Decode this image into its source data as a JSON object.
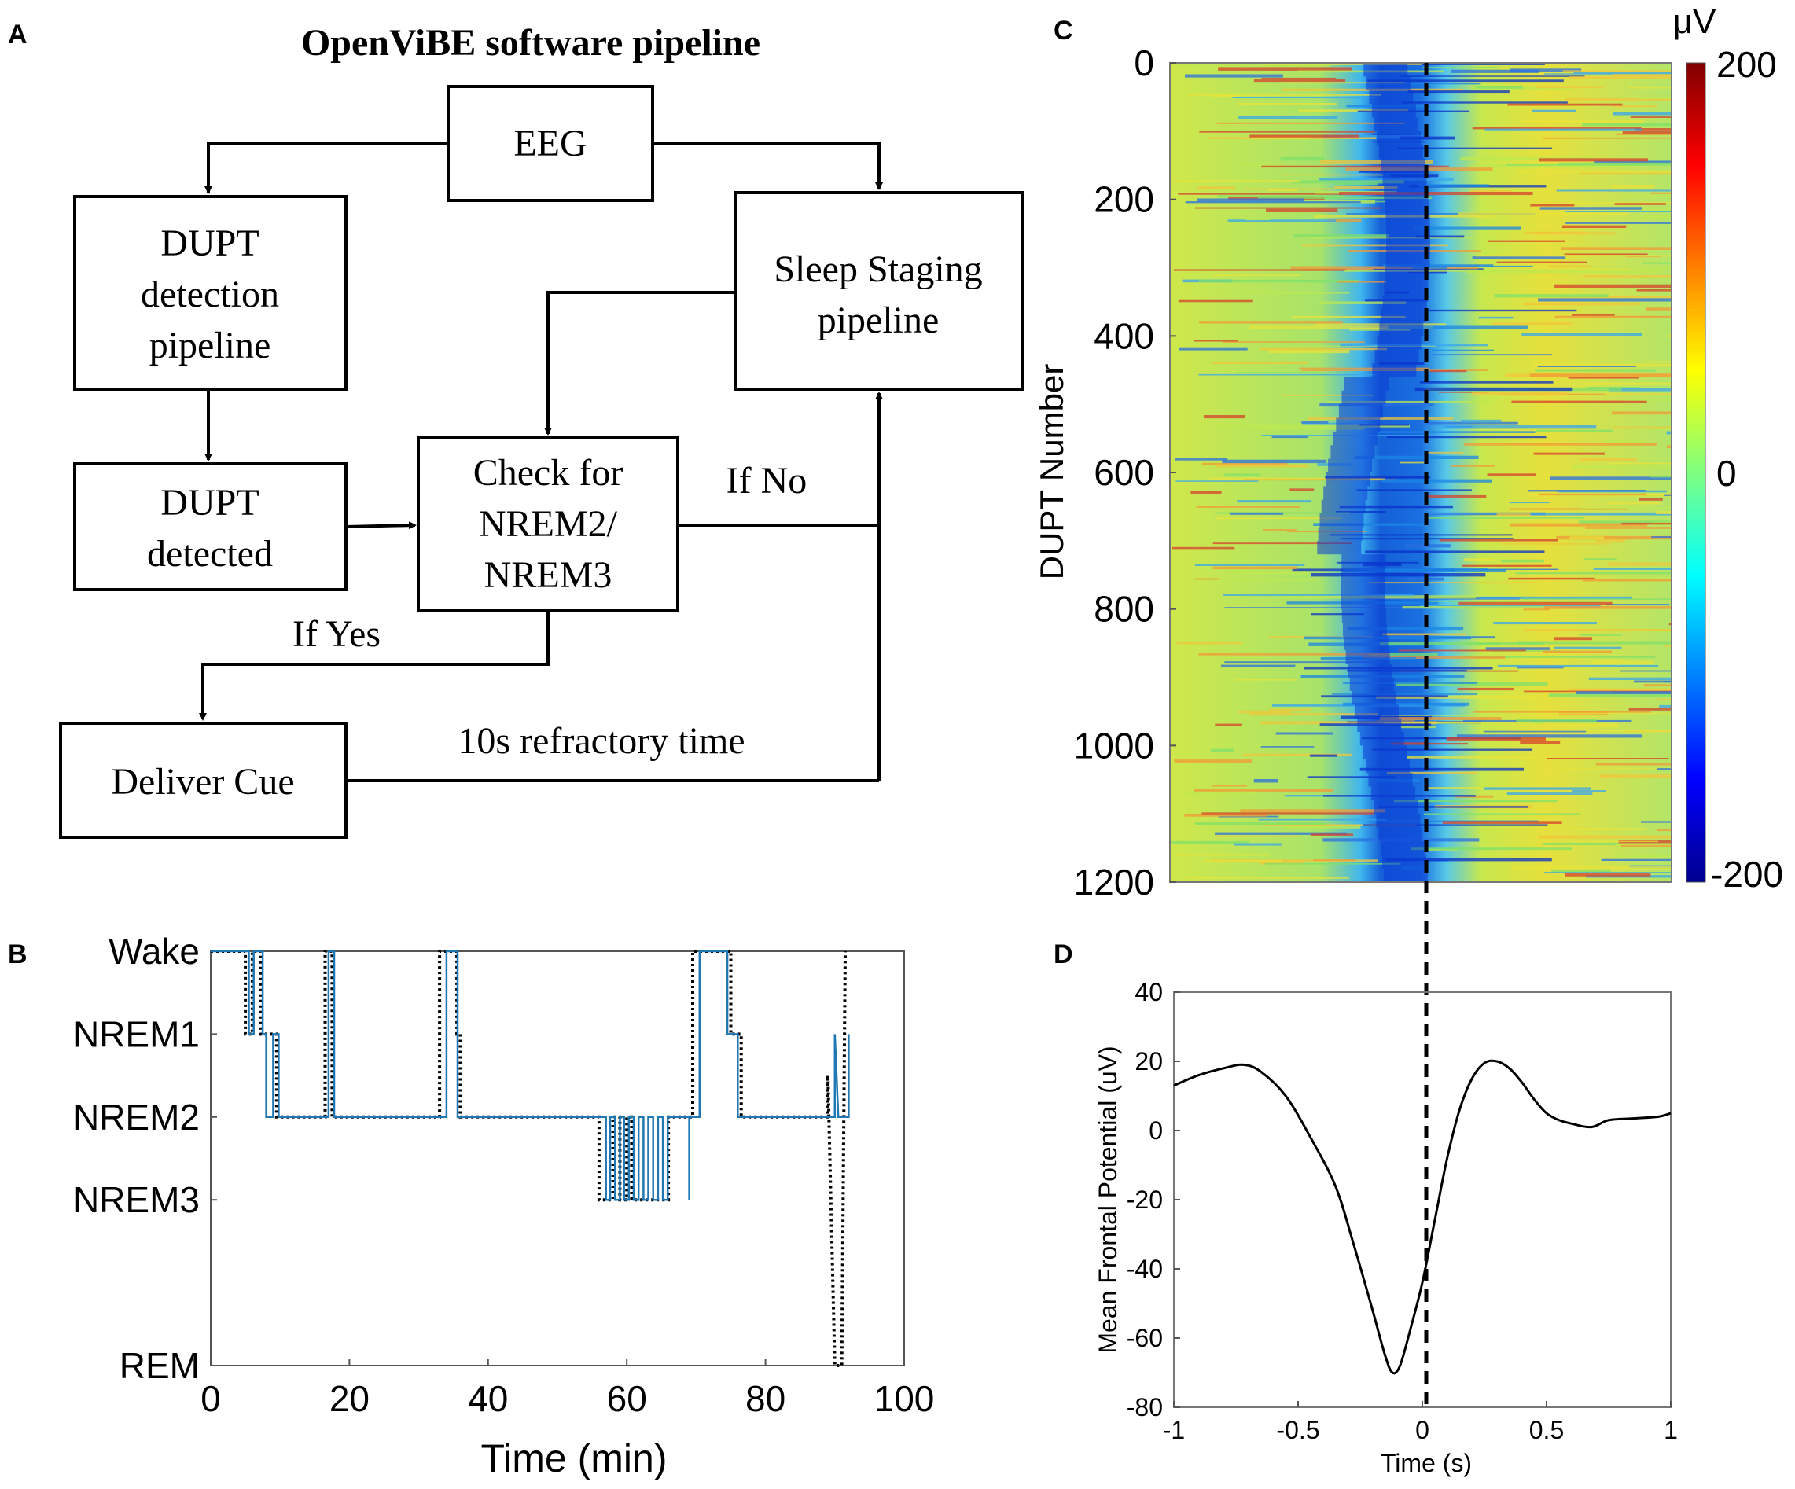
{
  "panels": {
    "a": "A",
    "b": "B",
    "c": "C",
    "d": "D"
  },
  "flowchart": {
    "title": "OpenViBE software pipeline",
    "eeg": "EEG",
    "detection_pipeline": [
      "DUPT",
      "detection",
      "pipeline"
    ],
    "sleep_staging": [
      "Sleep Staging",
      "pipeline"
    ],
    "dupt_detected": [
      "DUPT",
      "detected"
    ],
    "check": [
      "Check for",
      "NREM2/",
      "NREM3"
    ],
    "if_no": "If No",
    "if_yes": "If Yes",
    "deliver_cue": "Deliver Cue",
    "refractory": "10s refractory time"
  },
  "colors": {
    "predicted": "#1f77b4",
    "scored": "#000000",
    "accent_dashed": "#000000"
  },
  "chart_data": [
    {
      "id": "hypnogram",
      "type": "line",
      "xlabel": "Time (min)",
      "ylabel": "",
      "xlim": [
        0,
        100
      ],
      "xticks": [
        0,
        20,
        40,
        60,
        80,
        100
      ],
      "xtick_labels": [
        "0",
        "20",
        "40",
        "60",
        "80",
        "100"
      ],
      "ylevels": {
        "Wake": 0,
        "NREM1": 1,
        "NREM2": 2,
        "NREM3": 3,
        "REM": 5
      },
      "ytick_labels": [
        "Wake",
        "NREM1",
        "NREM2",
        "NREM3",
        "REM"
      ],
      "series": [
        {
          "name": "Scored (dotted)",
          "style": "dotted",
          "points": [
            [
              0,
              0
            ],
            [
              5,
              0
            ],
            [
              5,
              1
            ],
            [
              6,
              1
            ],
            [
              6,
              0
            ],
            [
              7.2,
              0
            ],
            [
              7.2,
              1
            ],
            [
              9.5,
              1
            ],
            [
              9.5,
              2
            ],
            [
              16.5,
              2
            ],
            [
              16.5,
              0
            ],
            [
              17.5,
              0
            ],
            [
              17.5,
              2
            ],
            [
              33,
              2
            ],
            [
              33,
              0
            ],
            [
              35.5,
              0
            ],
            [
              35.5,
              1
            ],
            [
              36,
              1
            ],
            [
              36,
              2
            ],
            [
              56,
              2
            ],
            [
              56,
              3
            ],
            [
              58,
              3
            ],
            [
              58,
              2
            ],
            [
              59,
              2
            ],
            [
              59,
              3
            ],
            [
              60,
              3
            ],
            [
              60,
              2
            ],
            [
              60.7,
              2
            ],
            [
              60.7,
              3
            ],
            [
              66,
              3
            ],
            [
              66,
              2
            ],
            [
              69.5,
              2
            ],
            [
              69.5,
              0
            ],
            [
              75,
              0
            ],
            [
              75,
              1
            ],
            [
              76.5,
              1
            ],
            [
              76.5,
              2
            ],
            [
              89,
              2
            ],
            [
              89,
              1.5
            ],
            [
              90,
              5
            ],
            [
              91,
              5
            ],
            [
              91.5,
              0
            ]
          ]
        },
        {
          "name": "Predicted (solid)",
          "style": "solid",
          "points": [
            [
              0,
              0
            ],
            [
              5.5,
              0
            ],
            [
              5.5,
              1
            ],
            [
              6.2,
              1
            ],
            [
              6.2,
              0
            ],
            [
              7.5,
              0
            ],
            [
              7.5,
              1
            ],
            [
              8,
              1
            ],
            [
              8,
              2
            ],
            [
              9,
              2
            ],
            [
              9,
              1
            ],
            [
              9.8,
              1
            ],
            [
              9.8,
              2
            ],
            [
              17,
              2
            ],
            [
              17,
              0
            ],
            [
              17.8,
              0
            ],
            [
              17.8,
              2
            ],
            [
              34,
              2
            ],
            [
              34,
              0
            ],
            [
              35.6,
              0
            ],
            [
              35.6,
              2
            ],
            [
              57,
              2
            ],
            [
              57,
              3
            ],
            [
              57.6,
              3
            ],
            [
              57.6,
              2
            ],
            [
              58.3,
              2
            ],
            [
              58.3,
              3
            ],
            [
              59,
              3
            ],
            [
              59,
              2
            ],
            [
              59.6,
              2
            ],
            [
              59.6,
              3
            ],
            [
              60.3,
              3
            ],
            [
              60.3,
              2
            ],
            [
              61,
              2
            ],
            [
              61,
              3
            ],
            [
              61.7,
              3
            ],
            [
              61.7,
              2
            ],
            [
              62.4,
              2
            ],
            [
              62.4,
              3
            ],
            [
              63.1,
              3
            ],
            [
              63.1,
              2
            ],
            [
              63.8,
              2
            ],
            [
              63.8,
              3
            ],
            [
              64.5,
              3
            ],
            [
              64.5,
              2
            ],
            [
              65.2,
              2
            ],
            [
              65.2,
              3
            ],
            [
              65.9,
              3
            ],
            [
              65.9,
              2
            ],
            [
              69,
              2
            ],
            [
              69,
              3
            ],
            [
              69,
              2
            ],
            [
              70.5,
              2
            ],
            [
              70.5,
              0
            ],
            [
              74.5,
              0
            ],
            [
              74.5,
              1
            ],
            [
              76,
              1
            ],
            [
              76,
              2
            ],
            [
              90,
              2
            ],
            [
              90,
              1
            ],
            [
              90.5,
              2
            ],
            [
              92,
              2
            ],
            [
              92,
              1
            ]
          ]
        }
      ]
    },
    {
      "id": "heatmap",
      "type": "heatmap",
      "ylabel": "DUPT Number",
      "ylim": [
        0,
        1200
      ],
      "yticks": [
        0,
        200,
        400,
        600,
        800,
        1000,
        1200
      ],
      "ytick_labels": [
        "0",
        "200",
        "400",
        "600",
        "800",
        "1000",
        "1200"
      ],
      "xlim": [
        -1,
        1
      ],
      "colorbar": {
        "label": "μV",
        "min": -200,
        "max": 200,
        "tick_labels": [
          "200",
          "0",
          "-200"
        ]
      },
      "description_bands": [
        {
          "dupt_from": 0,
          "dupt_to": 1200,
          "trough_time_start": -0.3,
          "trough_time_end": -0.1
        }
      ],
      "marker_time": 0
    },
    {
      "id": "mean_potential",
      "type": "line",
      "xlabel": "Time (s)",
      "ylabel": "Mean Frontal Potential (uV)",
      "xlim": [
        -1,
        1
      ],
      "ylim": [
        -80,
        40
      ],
      "xticks": [
        -1,
        -0.5,
        0,
        0.5,
        1
      ],
      "xtick_labels": [
        "-1",
        "-0.5",
        "0",
        "0.5",
        "1"
      ],
      "yticks": [
        40,
        20,
        0,
        -20,
        -40,
        -60,
        -80
      ],
      "ytick_labels": [
        "40",
        "20",
        "0",
        "-20",
        "-40",
        "-60",
        "-80"
      ],
      "x": [
        -1,
        -0.9,
        -0.8,
        -0.72,
        -0.65,
        -0.55,
        -0.45,
        -0.35,
        -0.28,
        -0.2,
        -0.15,
        -0.12,
        -0.09,
        -0.05,
        0,
        0.05,
        0.1,
        0.15,
        0.2,
        0.25,
        0.3,
        0.35,
        0.4,
        0.45,
        0.5,
        0.55,
        0.6,
        0.68,
        0.75,
        0.85,
        0.95,
        1
      ],
      "y": [
        13,
        16,
        18,
        19,
        17,
        10,
        -2,
        -16,
        -32,
        -52,
        -65,
        -70,
        -68,
        -58,
        -44,
        -26,
        -8,
        6,
        15,
        19.5,
        20,
        18,
        14,
        9,
        5,
        3,
        2,
        1,
        3,
        3.5,
        4,
        5
      ],
      "marker_time": 0
    }
  ]
}
